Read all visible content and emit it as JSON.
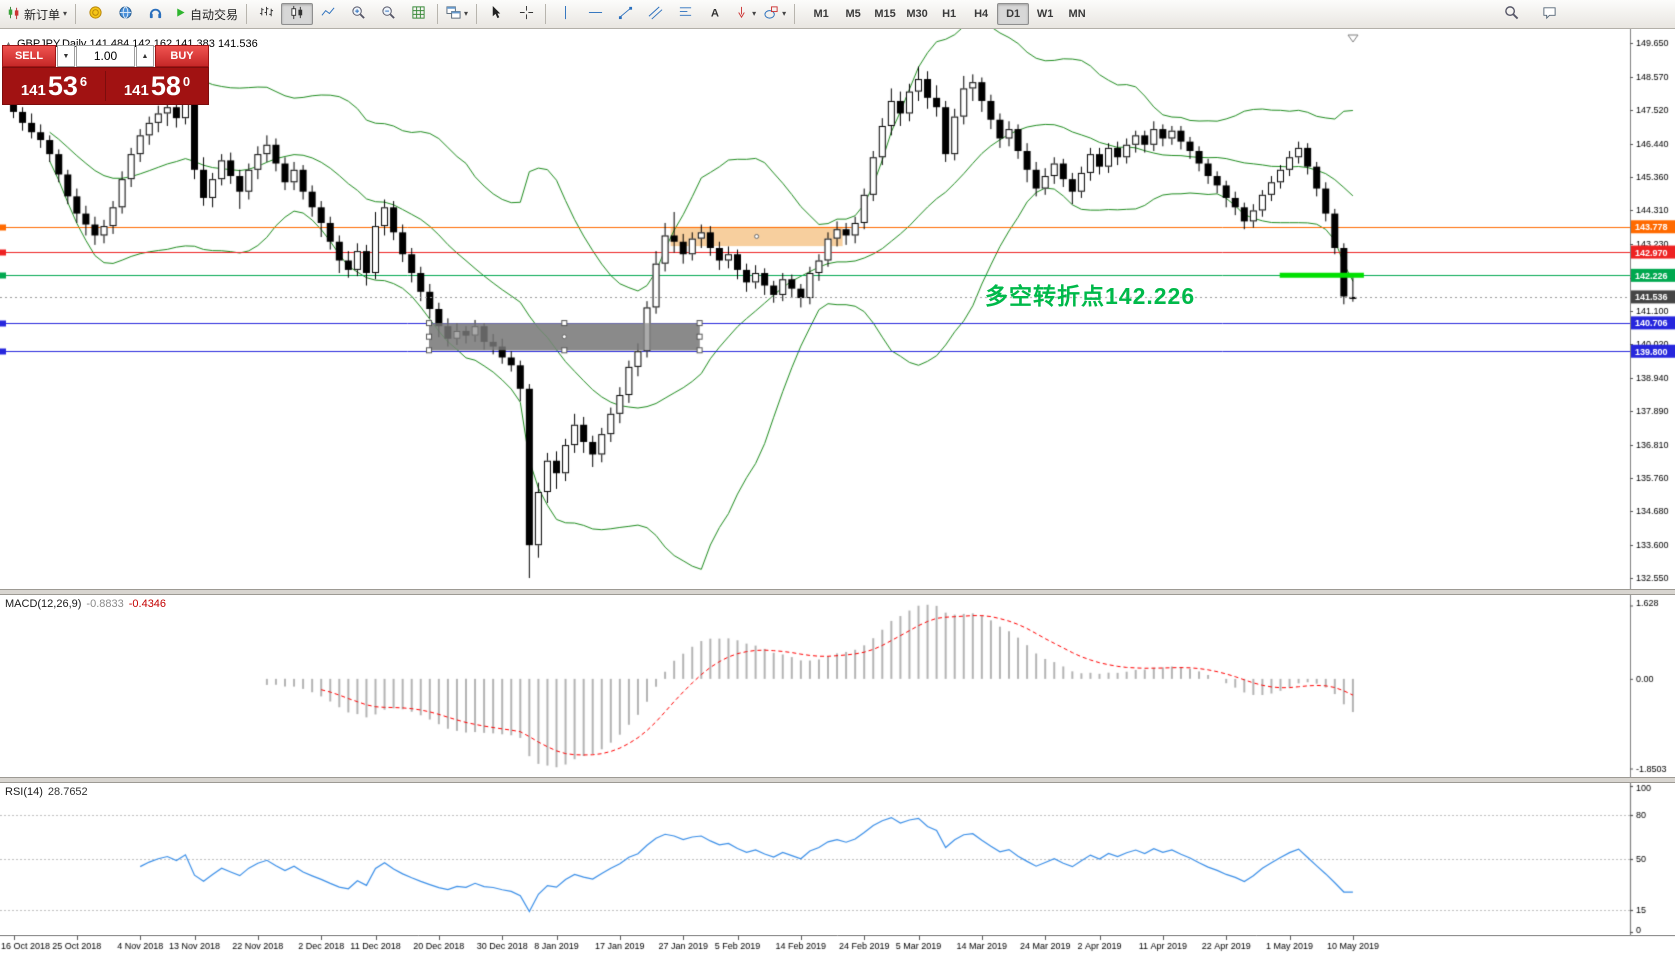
{
  "toolbar": {
    "new_order_label": "新订单",
    "autotrade_label": "自动交易",
    "timeframes": [
      "M1",
      "M5",
      "M15",
      "M30",
      "H1",
      "H4",
      "D1",
      "W1",
      "MN"
    ],
    "active_timeframe": "D1"
  },
  "symbol_bar": {
    "text": "GBPJPY,Daily 141.484 142.162 141.383 141.536"
  },
  "trade_panel": {
    "sell_label": "SELL",
    "buy_label": "BUY",
    "volume": "1.00",
    "sell": {
      "prefix": "141",
      "big": "53",
      "sup": "6"
    },
    "buy": {
      "prefix": "141",
      "big": "58",
      "sup": "0"
    }
  },
  "annotation": {
    "text": "多空转折点142.226",
    "color": "#00b94a"
  },
  "indicators": {
    "macd": {
      "name": "MACD(12,26,9)",
      "main": "-0.8833",
      "signal": "-0.4346"
    },
    "rsi": {
      "name": "RSI(14)",
      "value": "28.7652"
    }
  },
  "chart_data": {
    "type": "candlestick",
    "symbol": "GBPJPY",
    "timeframe": "Daily",
    "bollinger": {
      "period": 20,
      "deviation": 2,
      "color": "#1e8c1e"
    },
    "price_ticks": [
      "149.650",
      "148.570",
      "147.520",
      "146.440",
      "145.360",
      "144.310",
      "143.230",
      "142.150",
      "141.100",
      "140.020",
      "138.940",
      "137.890",
      "136.810",
      "135.760",
      "134.680",
      "133.600",
      "132.550"
    ],
    "levels": [
      {
        "price": 143.778,
        "label": "143.778",
        "color": "#ff6a00"
      },
      {
        "price": 142.97,
        "label": "142.970",
        "color": "#ee2222"
      },
      {
        "price": 142.226,
        "label": "142.226",
        "color": "#00a84f"
      },
      {
        "price": 140.706,
        "label": "140.706",
        "color": "#2626dd"
      },
      {
        "price": 139.8,
        "label": "139.800",
        "color": "#2626dd"
      }
    ],
    "current_price": {
      "price": 141.536,
      "label": "141.536",
      "color": "#454545"
    },
    "boxes": [
      {
        "i1": 46.3,
        "i2": 76.2,
        "p1": 140.7,
        "p2": 139.83,
        "fill": "#8a8a8a",
        "handles": true,
        "overlay": true
      },
      {
        "i1": 73.0,
        "i2": 92.0,
        "p1": 143.778,
        "p2": 143.16,
        "fill": "#f7cf9e",
        "handles": false,
        "overlay": false
      }
    ],
    "highlight_segment": {
      "i1": 140.3,
      "i2": 149.6,
      "price": 142.226,
      "color": "#00e000",
      "width": 5
    },
    "macd": {
      "params": "12,26,9",
      "ticks": {
        "top": "1.628",
        "zero": "0.00",
        "bottom": "-1.8503"
      }
    },
    "rsi": {
      "period": 14,
      "ticks": [
        [
          "100",
          100
        ],
        [
          "80",
          80
        ],
        [
          "50",
          50
        ],
        [
          "15",
          15
        ],
        [
          "0",
          0
        ]
      ],
      "levels": [
        80,
        50,
        15
      ]
    },
    "date_ticks": [
      [
        "16 Oct 2018",
        0
      ],
      [
        "25 Oct 2018",
        7
      ],
      [
        "4 Nov 2018",
        14
      ],
      [
        "13 Nov 2018",
        20
      ],
      [
        "22 Nov 2018",
        27
      ],
      [
        "2 Dec 2018",
        34
      ],
      [
        "11 Dec 2018",
        40
      ],
      [
        "20 Dec 2018",
        47
      ],
      [
        "30 Dec 2018",
        54
      ],
      [
        "8 Jan 2019",
        60
      ],
      [
        "17 Jan 2019",
        67
      ],
      [
        "27 Jan 2019",
        74
      ],
      [
        "5 Feb 2019",
        80
      ],
      [
        "14 Feb 2019",
        87
      ],
      [
        "24 Feb 2019",
        94
      ],
      [
        "5 Mar 2019",
        100
      ],
      [
        "14 Mar 2019",
        107
      ],
      [
        "24 Mar 2019",
        114
      ],
      [
        "2 Apr 2019",
        120
      ],
      [
        "11 Apr 2019",
        127
      ],
      [
        "22 Apr 2019",
        134
      ],
      [
        "1 May 2019",
        141
      ],
      [
        "10 May 2019",
        148
      ]
    ],
    "candles": [
      [
        147.7,
        147.95,
        147.25,
        147.45
      ],
      [
        147.45,
        147.6,
        146.85,
        147.1
      ],
      [
        147.1,
        147.4,
        146.6,
        146.8
      ],
      [
        146.8,
        147.05,
        146.3,
        146.55
      ],
      [
        146.55,
        146.7,
        145.85,
        146.1
      ],
      [
        146.1,
        146.25,
        145.2,
        145.45
      ],
      [
        145.45,
        145.6,
        144.5,
        144.75
      ],
      [
        144.75,
        145.0,
        143.9,
        144.2
      ],
      [
        144.2,
        144.45,
        143.5,
        143.85
      ],
      [
        143.85,
        144.1,
        143.2,
        143.5
      ],
      [
        143.5,
        144.0,
        143.25,
        143.8
      ],
      [
        143.8,
        144.6,
        143.55,
        144.4
      ],
      [
        144.4,
        145.55,
        144.2,
        145.3
      ],
      [
        145.3,
        146.3,
        145.05,
        146.1
      ],
      [
        146.1,
        146.9,
        145.85,
        146.7
      ],
      [
        146.7,
        147.3,
        146.4,
        147.1
      ],
      [
        147.1,
        147.65,
        146.8,
        147.4
      ],
      [
        147.4,
        147.8,
        147.0,
        147.6
      ],
      [
        147.6,
        147.85,
        146.95,
        147.25
      ],
      [
        147.25,
        147.95,
        147.05,
        147.75
      ],
      [
        147.75,
        148.1,
        145.3,
        145.6
      ],
      [
        145.6,
        146.0,
        144.45,
        144.7
      ],
      [
        144.7,
        145.5,
        144.4,
        145.3
      ],
      [
        145.3,
        146.1,
        145.1,
        145.9
      ],
      [
        145.9,
        146.15,
        145.15,
        145.4
      ],
      [
        145.4,
        145.6,
        144.35,
        144.9
      ],
      [
        144.9,
        145.8,
        144.65,
        145.6
      ],
      [
        145.6,
        146.35,
        145.3,
        146.1
      ],
      [
        146.1,
        146.7,
        145.85,
        146.4
      ],
      [
        146.4,
        146.6,
        145.55,
        145.8
      ],
      [
        145.8,
        146.0,
        144.95,
        145.2
      ],
      [
        145.2,
        145.85,
        144.95,
        145.6
      ],
      [
        145.6,
        145.75,
        144.65,
        144.9
      ],
      [
        144.9,
        145.1,
        144.1,
        144.4
      ],
      [
        144.4,
        144.6,
        143.45,
        143.9
      ],
      [
        143.9,
        144.1,
        143.05,
        143.3
      ],
      [
        143.3,
        143.5,
        142.3,
        142.7
      ],
      [
        142.7,
        143.0,
        142.15,
        142.4
      ],
      [
        142.4,
        143.25,
        142.2,
        143.0
      ],
      [
        143.0,
        143.2,
        141.9,
        142.3
      ],
      [
        142.3,
        144.25,
        142.1,
        143.8
      ],
      [
        143.8,
        144.65,
        143.5,
        144.4
      ],
      [
        144.4,
        144.6,
        143.35,
        143.6
      ],
      [
        143.6,
        143.85,
        142.65,
        142.9
      ],
      [
        142.9,
        143.1,
        142.0,
        142.3
      ],
      [
        142.3,
        142.5,
        141.4,
        141.7
      ],
      [
        141.7,
        141.95,
        140.85,
        141.15
      ],
      [
        141.15,
        141.35,
        140.25,
        140.6
      ],
      [
        140.6,
        140.85,
        139.95,
        140.2
      ],
      [
        140.2,
        140.7,
        140.0,
        140.45
      ],
      [
        140.45,
        140.6,
        140.05,
        140.3
      ],
      [
        140.3,
        140.8,
        140.1,
        140.6
      ],
      [
        140.6,
        140.7,
        139.85,
        140.1
      ],
      [
        140.1,
        140.35,
        139.7,
        139.95
      ],
      [
        139.95,
        140.2,
        139.4,
        139.6
      ],
      [
        139.6,
        139.8,
        139.15,
        139.35
      ],
      [
        139.35,
        139.5,
        138.2,
        138.6
      ],
      [
        138.6,
        138.75,
        132.55,
        133.6
      ],
      [
        133.6,
        135.6,
        133.2,
        135.3
      ],
      [
        135.3,
        136.55,
        134.95,
        136.3
      ],
      [
        136.3,
        136.6,
        135.4,
        135.9
      ],
      [
        135.9,
        137.0,
        135.65,
        136.8
      ],
      [
        136.8,
        137.8,
        136.55,
        137.45
      ],
      [
        137.45,
        137.7,
        136.55,
        136.9
      ],
      [
        136.9,
        137.1,
        136.1,
        136.5
      ],
      [
        136.5,
        137.35,
        136.25,
        137.15
      ],
      [
        137.15,
        138.0,
        136.9,
        137.8
      ],
      [
        137.8,
        138.65,
        137.5,
        138.4
      ],
      [
        138.4,
        139.5,
        138.15,
        139.3
      ],
      [
        139.3,
        140.05,
        139.0,
        139.8
      ],
      [
        139.8,
        141.4,
        139.6,
        141.2
      ],
      [
        141.2,
        143.0,
        141.0,
        142.6
      ],
      [
        142.6,
        143.9,
        142.35,
        143.5
      ],
      [
        143.5,
        144.25,
        142.95,
        143.3
      ],
      [
        143.3,
        143.55,
        142.6,
        142.9
      ],
      [
        142.9,
        143.6,
        142.7,
        143.4
      ],
      [
        143.4,
        143.85,
        143.1,
        143.6
      ],
      [
        143.6,
        143.8,
        142.85,
        143.1
      ],
      [
        143.1,
        143.3,
        142.4,
        142.7
      ],
      [
        142.7,
        143.15,
        142.45,
        142.9
      ],
      [
        142.9,
        143.05,
        142.1,
        142.4
      ],
      [
        142.4,
        142.6,
        141.7,
        142.0
      ],
      [
        142.0,
        142.55,
        141.8,
        142.3
      ],
      [
        142.3,
        142.45,
        141.6,
        141.9
      ],
      [
        141.9,
        142.05,
        141.35,
        141.6
      ],
      [
        141.6,
        142.3,
        141.4,
        142.1
      ],
      [
        142.1,
        142.25,
        141.5,
        141.8
      ],
      [
        141.8,
        141.95,
        141.2,
        141.5
      ],
      [
        141.5,
        142.5,
        141.3,
        142.3
      ],
      [
        142.3,
        142.9,
        142.05,
        142.7
      ],
      [
        142.7,
        143.6,
        142.5,
        143.4
      ],
      [
        143.4,
        143.95,
        143.15,
        143.7
      ],
      [
        143.7,
        143.9,
        143.2,
        143.5
      ],
      [
        143.5,
        144.1,
        143.25,
        143.9
      ],
      [
        143.9,
        145.0,
        143.7,
        144.8
      ],
      [
        144.8,
        146.2,
        144.6,
        146.0
      ],
      [
        146.0,
        147.25,
        145.75,
        147.0
      ],
      [
        147.0,
        148.2,
        146.7,
        147.8
      ],
      [
        147.8,
        148.1,
        147.0,
        147.4
      ],
      [
        147.4,
        148.35,
        147.15,
        148.1
      ],
      [
        148.1,
        148.9,
        147.8,
        148.5
      ],
      [
        148.5,
        148.75,
        147.55,
        147.9
      ],
      [
        147.9,
        148.3,
        147.3,
        147.6
      ],
      [
        147.6,
        147.8,
        145.85,
        146.1
      ],
      [
        146.1,
        147.55,
        145.9,
        147.3
      ],
      [
        147.3,
        148.6,
        147.05,
        148.2
      ],
      [
        148.2,
        148.65,
        147.8,
        148.4
      ],
      [
        148.4,
        148.55,
        147.45,
        147.8
      ],
      [
        147.8,
        148.0,
        146.9,
        147.2
      ],
      [
        147.2,
        147.4,
        146.3,
        146.6
      ],
      [
        146.6,
        147.15,
        146.35,
        146.9
      ],
      [
        146.9,
        147.05,
        145.95,
        146.2
      ],
      [
        146.2,
        146.45,
        145.2,
        145.6
      ],
      [
        145.6,
        145.85,
        144.75,
        145.0
      ],
      [
        145.0,
        145.65,
        144.8,
        145.4
      ],
      [
        145.4,
        146.0,
        145.15,
        145.8
      ],
      [
        145.8,
        145.95,
        145.05,
        145.3
      ],
      [
        145.3,
        145.5,
        144.5,
        144.9
      ],
      [
        144.9,
        145.7,
        144.7,
        145.5
      ],
      [
        145.5,
        146.3,
        145.25,
        146.1
      ],
      [
        146.1,
        146.3,
        145.45,
        145.7
      ],
      [
        145.7,
        146.45,
        145.5,
        146.3
      ],
      [
        146.3,
        146.5,
        145.75,
        146.0
      ],
      [
        146.0,
        146.6,
        145.8,
        146.4
      ],
      [
        146.4,
        146.85,
        146.15,
        146.7
      ],
      [
        146.7,
        146.85,
        146.15,
        146.4
      ],
      [
        146.4,
        147.15,
        146.2,
        146.9
      ],
      [
        146.9,
        147.05,
        146.35,
        146.6
      ],
      [
        146.6,
        147.0,
        146.4,
        146.85
      ],
      [
        146.85,
        147.0,
        146.25,
        146.5
      ],
      [
        146.5,
        146.65,
        145.95,
        146.2
      ],
      [
        146.2,
        146.35,
        145.55,
        145.8
      ],
      [
        145.8,
        145.95,
        145.15,
        145.4
      ],
      [
        145.4,
        145.55,
        144.85,
        145.1
      ],
      [
        145.1,
        145.25,
        144.4,
        144.7
      ],
      [
        144.7,
        144.9,
        144.15,
        144.4
      ],
      [
        144.4,
        144.55,
        143.7,
        143.95
      ],
      [
        143.95,
        144.5,
        143.75,
        144.3
      ],
      [
        144.3,
        144.95,
        144.1,
        144.8
      ],
      [
        144.8,
        145.4,
        144.6,
        145.2
      ],
      [
        145.2,
        145.75,
        145.0,
        145.6
      ],
      [
        145.6,
        146.2,
        145.4,
        146.0
      ],
      [
        146.0,
        146.5,
        145.8,
        146.3
      ],
      [
        146.3,
        146.45,
        145.45,
        145.7
      ],
      [
        145.7,
        145.85,
        144.75,
        145.0
      ],
      [
        145.0,
        145.2,
        143.95,
        144.2
      ],
      [
        144.2,
        144.35,
        142.9,
        143.1
      ],
      [
        143.1,
        143.25,
        141.3,
        141.55
      ],
      [
        141.484,
        142.162,
        141.383,
        141.536
      ]
    ]
  }
}
